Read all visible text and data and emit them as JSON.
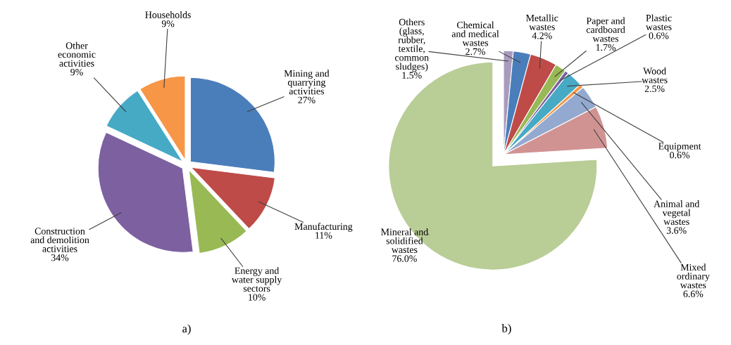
{
  "chart_data": [
    {
      "type": "pie",
      "categories": [
        "Mining and\nquarrying\nactivities",
        "Manufacturing",
        "Energy and\nwater supply\nsectors",
        "Construction\nand demolition\nactivities",
        "Other\neconomic\nactivities",
        "Households"
      ],
      "values": [
        27,
        11,
        10,
        34,
        9,
        9
      ],
      "value_labels": [
        "27%",
        "11%",
        "10%",
        "34%",
        "9%",
        "9%"
      ],
      "colors": [
        "#4a7ebb",
        "#be4b48",
        "#98b954",
        "#7d60a0",
        "#46aac5",
        "#f79646"
      ],
      "annotations": [
        "a)"
      ]
    },
    {
      "type": "pie",
      "categories": [
        "Others\n(glass,\nrubber,\ntextile,\ncommon\nsludges)",
        "Chemical\nand medical\nwastes",
        "Metallic\nwastes",
        "Paper and\ncardboard\nwastes",
        "Plastic\nwastes",
        "Wood\nwastes",
        "Equipment",
        "Animal and\nvegetal\nwastes",
        "Mixed\nordinary\nwastes",
        "Mineral and\nsolidified\nwastes"
      ],
      "values": [
        1.5,
        2.7,
        4.2,
        1.7,
        0.6,
        2.5,
        0.6,
        3.6,
        6.6,
        76.0
      ],
      "value_labels": [
        "1.5%",
        "2.7%",
        "4.2%",
        "1.7%",
        "0.6%",
        "2.5%",
        "0.6%",
        "3.6%",
        "6.6%",
        "76.0%"
      ],
      "colors": [
        "#a99bbd",
        "#4a7ebb",
        "#be4b48",
        "#98b954",
        "#7d60a0",
        "#46aac5",
        "#f79646",
        "#93a9cf",
        "#d19392",
        "#b9cd96"
      ],
      "annotations": [
        "b)"
      ]
    }
  ]
}
